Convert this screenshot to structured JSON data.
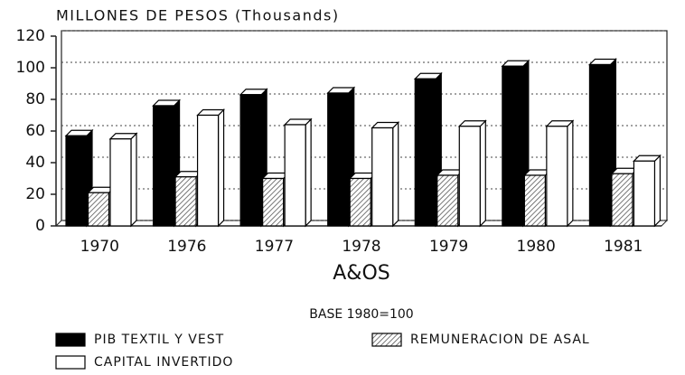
{
  "chart_data": {
    "type": "bar",
    "title": "MILLONES DE PESOS (Thousands)",
    "x_label": "A&OS",
    "note": "BASE 1980=100",
    "categories": [
      "1970",
      "1976",
      "1977",
      "1978",
      "1979",
      "1980",
      "1981"
    ],
    "series": [
      {
        "name": "PIB TEXTIL Y VEST",
        "color": "#000000",
        "values": [
          57,
          76,
          83,
          84,
          93,
          101,
          102
        ]
      },
      {
        "name": "REMUNERACION DE ASAL",
        "color": "#ffffff",
        "hatch": true,
        "values": [
          21,
          31,
          30,
          30,
          32,
          32,
          33
        ]
      },
      {
        "name": "CAPITAL INVERTIDO",
        "color": "#ffffff",
        "values": [
          55,
          70,
          64,
          62,
          63,
          63,
          41
        ]
      }
    ],
    "ylim": [
      0,
      120
    ],
    "yticks": [
      0,
      20,
      40,
      60,
      80,
      100,
      120
    ],
    "grid": true
  }
}
